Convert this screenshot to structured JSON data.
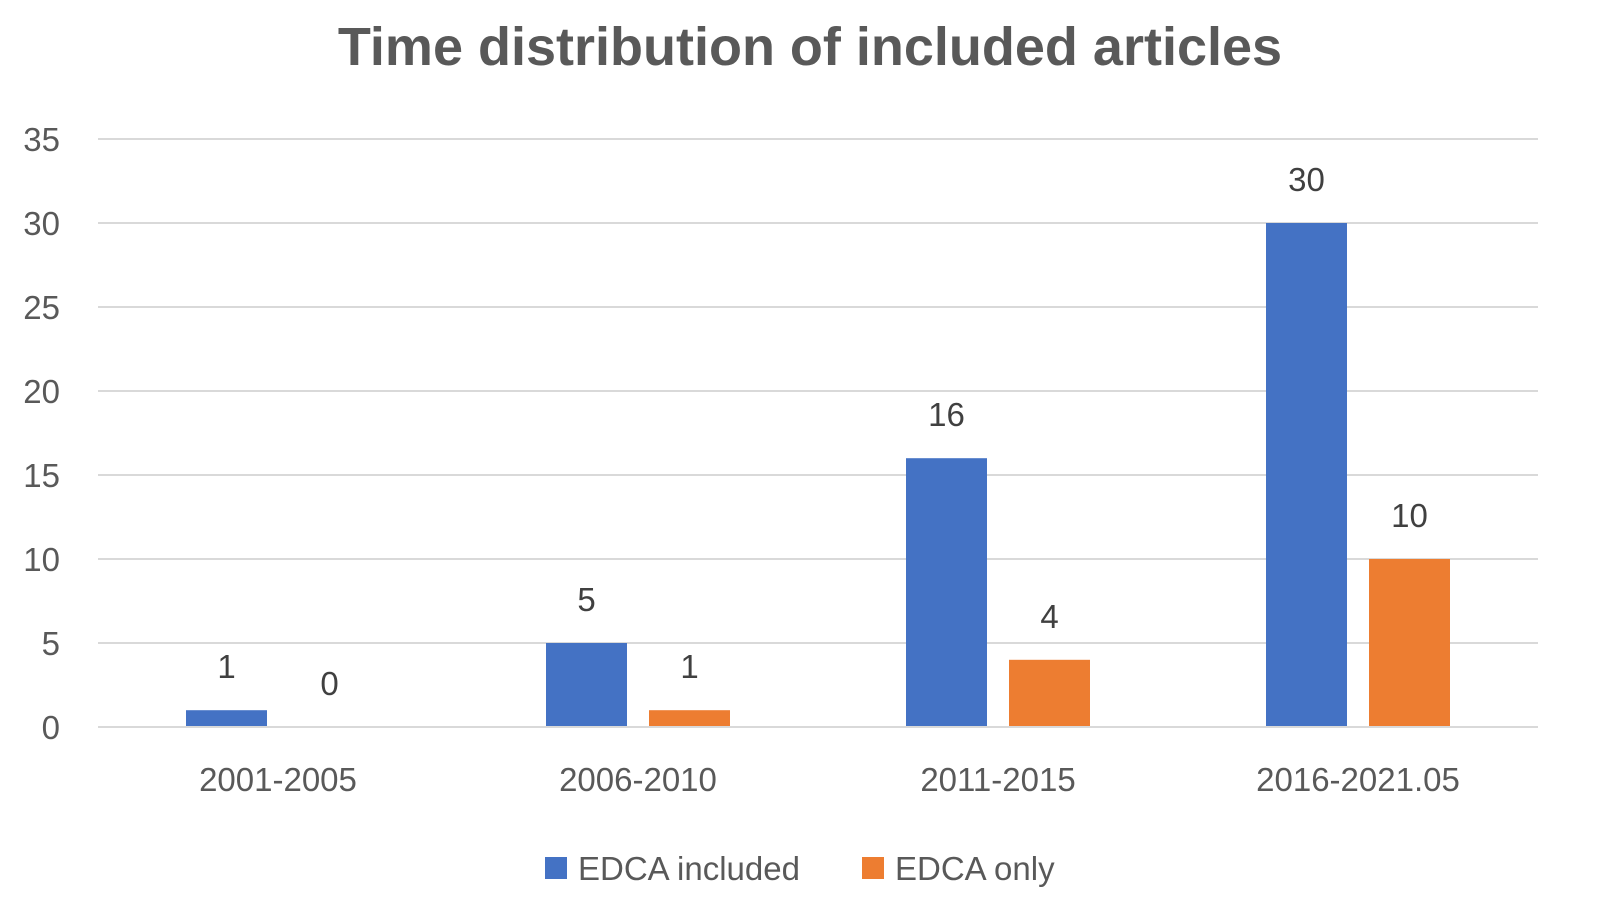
{
  "chart_data": {
    "type": "bar",
    "title": "Time distribution of included articles",
    "xlabel": "",
    "ylabel": "",
    "categories": [
      "2001-2005",
      "2006-2010",
      "2011-2015",
      "2016-2021.05"
    ],
    "series": [
      {
        "name": "EDCA included",
        "color": "#4472c4",
        "values": [
          1,
          5,
          16,
          30
        ]
      },
      {
        "name": "EDCA only",
        "color": "#ed7d31",
        "values": [
          0,
          1,
          4,
          10
        ]
      }
    ],
    "ylim": [
      0,
      35
    ],
    "yticks": [
      "0",
      "5",
      "10",
      "15",
      "20",
      "25",
      "30",
      "35"
    ],
    "ytick_values": [
      0,
      5,
      10,
      15,
      20,
      25,
      30,
      35
    ],
    "grid": true,
    "legend_position": "bottom",
    "data_labels": true
  }
}
